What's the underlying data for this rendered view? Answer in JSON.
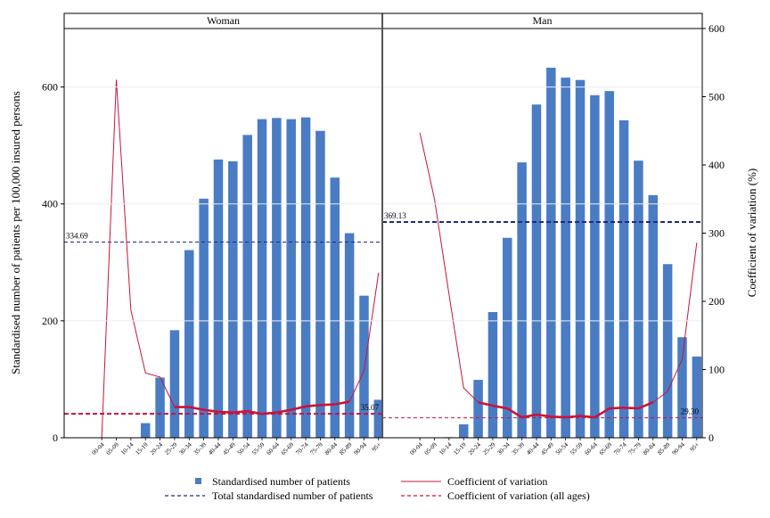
{
  "chart_data": {
    "type": "bar",
    "ylabel": "Standardised number of patients per 100,000 insured persons",
    "y2label": "Coefficient of variation (%)",
    "ylim": [
      0,
      700
    ],
    "y2lim": [
      0,
      600
    ],
    "yticks": [
      "0",
      "200",
      "400",
      "600"
    ],
    "y2ticks": [
      "0",
      "100",
      "200",
      "300",
      "400",
      "500",
      "600"
    ],
    "categories": [
      "00-04",
      "05-09",
      "10-14",
      "15-19",
      "20-24",
      "25-29",
      "30-34",
      "35-39",
      "40-44",
      "45-49",
      "50-54",
      "55-59",
      "60-64",
      "65-69",
      "70-74",
      "75-79",
      "80-84",
      "85-89",
      "90-94",
      "95+"
    ],
    "category_labels": [
      "00-04",
      "05-09",
      "10-14",
      "15-19",
      "20-24",
      "25-29",
      "30-34",
      "35-39",
      "40-44",
      "45-49",
      "50-54",
      "55-59",
      "60-64",
      "65-69",
      "70-74",
      "75-79",
      "80-84",
      "85-89",
      "90-94",
      "95+"
    ],
    "panels": [
      {
        "name": "Woman",
        "bars": [
          0,
          0,
          0,
          25,
          103,
          184,
          321,
          409,
          476,
          473,
          518,
          545,
          547,
          545,
          548,
          525,
          445,
          350,
          243,
          65
        ],
        "cv": [
          0,
          525,
          187,
          95,
          89,
          45,
          45,
          41,
          38,
          37,
          39,
          35,
          37,
          41,
          46,
          48,
          49,
          53,
          98,
          242
        ],
        "cv_thick_from": "25-29",
        "cv_thick_to": "85-89",
        "total": 334.69,
        "total_label": "334.69",
        "cv_all": 35.07,
        "cv_all_label": "35.07"
      },
      {
        "name": "Man",
        "bars": [
          0,
          0,
          1,
          23,
          99,
          215,
          342,
          471,
          570,
          633,
          616,
          612,
          586,
          593,
          543,
          474,
          415,
          297,
          172,
          139
        ],
        "cv": [
          447,
          350,
          210,
          73,
          52,
          47,
          43,
          30,
          34,
          31,
          30,
          32,
          30,
          43,
          44,
          43,
          52,
          68,
          115,
          286
        ],
        "cv_thick_from": "20-24",
        "cv_thick_to": "80-84",
        "total": 369.13,
        "total_label": "369.13",
        "cv_all": 29.3,
        "cv_all_label": "29.30"
      }
    ],
    "colors": {
      "bar": "#4a7cc4",
      "total_line": "#1f2a80",
      "cv_line": "#c8143c",
      "cv_all_line": "#c8143c"
    },
    "legend": {
      "placement": "bottom",
      "entries": [
        "Standardised number of patients",
        "Coefficient of variation",
        "Total standardised number of patients",
        "Coefficient of variation (all ages)"
      ]
    }
  }
}
